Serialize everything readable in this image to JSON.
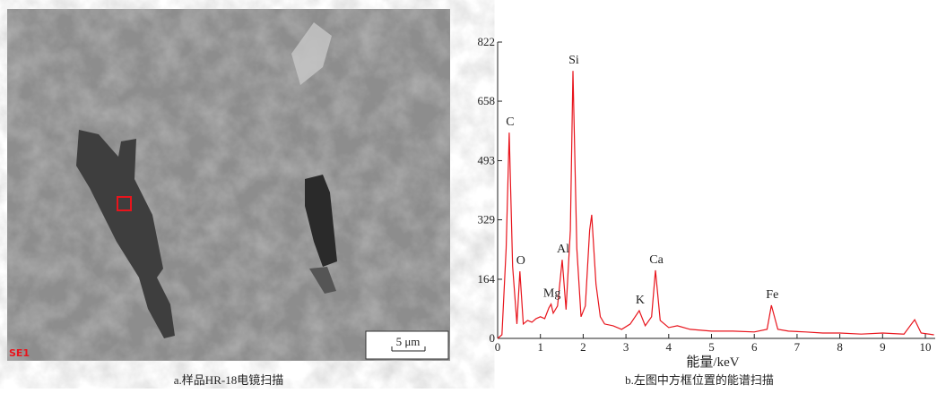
{
  "panel_a": {
    "detector_label": "SE1",
    "scale_label": "5 μm",
    "caption": "a.样品HR-18电镜扫描"
  },
  "chart_data": {
    "type": "line",
    "caption": "b.左图中方框位置的能谱扫描",
    "x_label": "能量/keV",
    "color": "#e8141c",
    "x": [
      0,
      0.1,
      0.2,
      0.27,
      0.35,
      0.45,
      0.52,
      0.6,
      0.7,
      0.8,
      0.9,
      1.0,
      1.1,
      1.2,
      1.25,
      1.3,
      1.4,
      1.51,
      1.6,
      1.7,
      1.76,
      1.85,
      1.95,
      2.05,
      2.15,
      2.2,
      2.3,
      2.4,
      2.5,
      2.7,
      2.9,
      3.1,
      3.31,
      3.45,
      3.6,
      3.69,
      3.8,
      4.0,
      4.2,
      4.5,
      5.0,
      5.5,
      6.0,
      6.3,
      6.4,
      6.55,
      6.8,
      7.2,
      7.6,
      8.0,
      8.5,
      9.0,
      9.5,
      9.75,
      9.9,
      10.2
    ],
    "values": [
      0,
      10,
      250,
      571,
      200,
      40,
      186,
      40,
      50,
      45,
      55,
      60,
      55,
      85,
      95,
      70,
      90,
      218,
      80,
      300,
      742,
      250,
      60,
      90,
      300,
      343,
      150,
      60,
      40,
      35,
      25,
      40,
      77,
      35,
      60,
      189,
      50,
      30,
      35,
      25,
      20,
      20,
      18,
      25,
      92,
      25,
      20,
      18,
      15,
      15,
      12,
      15,
      12,
      52,
      15,
      10
    ],
    "xlim": [
      0,
      10.23
    ],
    "ylim": [
      0,
      822
    ],
    "xticks": [
      0,
      1,
      2,
      3,
      4,
      5,
      6,
      7,
      8,
      9,
      10
    ],
    "yticks": [
      0,
      164,
      329,
      493,
      658,
      822
    ],
    "annotations": [
      {
        "text": "C",
        "x": 0.27,
        "y": 571
      },
      {
        "text": "O",
        "x": 0.52,
        "y": 186
      },
      {
        "text": "Mg",
        "x": 1.25,
        "y": 95
      },
      {
        "text": "Al",
        "x": 1.51,
        "y": 218
      },
      {
        "text": "Si",
        "x": 1.76,
        "y": 742
      },
      {
        "text": "K",
        "x": 3.31,
        "y": 77
      },
      {
        "text": "Ca",
        "x": 3.69,
        "y": 189
      },
      {
        "text": "Fe",
        "x": 6.4,
        "y": 92
      }
    ]
  }
}
